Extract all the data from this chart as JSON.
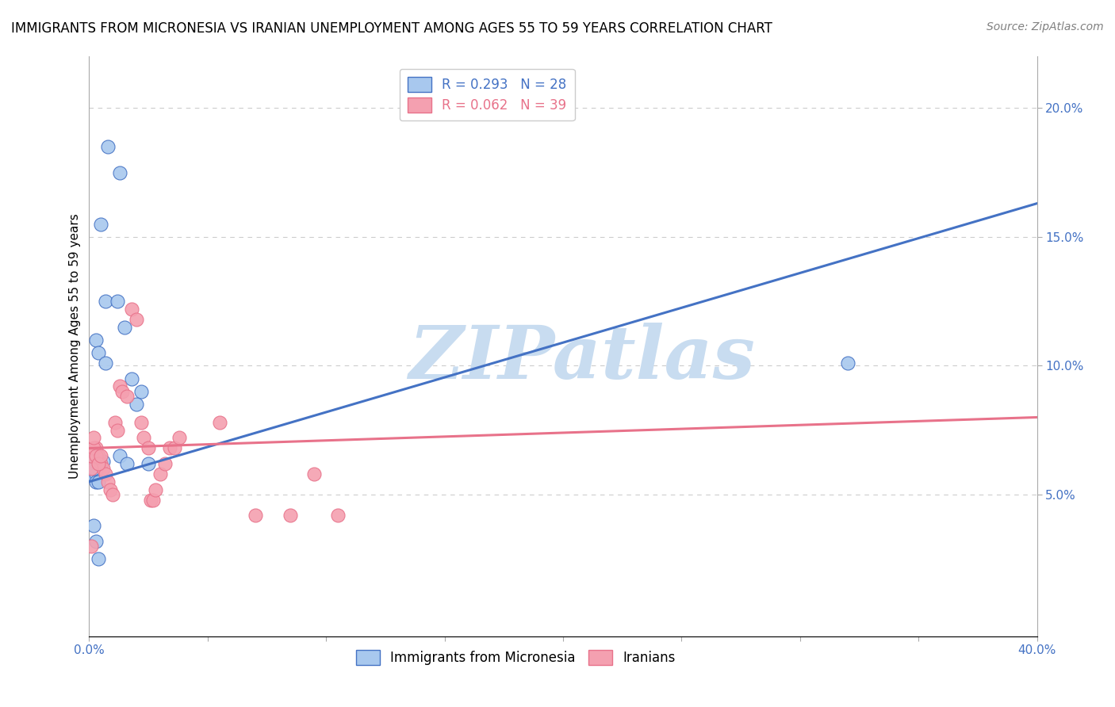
{
  "title": "IMMIGRANTS FROM MICRONESIA VS IRANIAN UNEMPLOYMENT AMONG AGES 55 TO 59 YEARS CORRELATION CHART",
  "source_text": "Source: ZipAtlas.com",
  "ylabel": "Unemployment Among Ages 55 to 59 years",
  "xlabel": "",
  "xlim": [
    0.0,
    0.4
  ],
  "ylim": [
    -0.005,
    0.22
  ],
  "xticks": [
    0.0,
    0.05,
    0.1,
    0.15,
    0.2,
    0.25,
    0.3,
    0.35,
    0.4
  ],
  "xtick_labels_show": [
    true,
    false,
    false,
    false,
    false,
    false,
    false,
    false,
    true
  ],
  "yticks": [
    0.05,
    0.1,
    0.15,
    0.2
  ],
  "blue_R": 0.293,
  "blue_N": 28,
  "pink_R": 0.062,
  "pink_N": 39,
  "blue_scatter_x": [
    0.008,
    0.013,
    0.005,
    0.007,
    0.012,
    0.015,
    0.003,
    0.004,
    0.006,
    0.002,
    0.001,
    0.002,
    0.001,
    0.003,
    0.003,
    0.004,
    0.018,
    0.022,
    0.02,
    0.025,
    0.013,
    0.016,
    0.002,
    0.007,
    0.32,
    0.002,
    0.003,
    0.004
  ],
  "blue_scatter_y": [
    0.185,
    0.175,
    0.155,
    0.125,
    0.125,
    0.115,
    0.11,
    0.105,
    0.063,
    0.063,
    0.063,
    0.063,
    0.058,
    0.058,
    0.055,
    0.055,
    0.095,
    0.09,
    0.085,
    0.062,
    0.065,
    0.062,
    0.06,
    0.101,
    0.101,
    0.038,
    0.032,
    0.025
  ],
  "pink_scatter_x": [
    0.003,
    0.004,
    0.005,
    0.006,
    0.007,
    0.008,
    0.009,
    0.01,
    0.011,
    0.012,
    0.013,
    0.014,
    0.016,
    0.018,
    0.02,
    0.022,
    0.023,
    0.025,
    0.026,
    0.027,
    0.028,
    0.03,
    0.032,
    0.034,
    0.036,
    0.038,
    0.055,
    0.07,
    0.085,
    0.095,
    0.105,
    0.001,
    0.001,
    0.001,
    0.002,
    0.002,
    0.003,
    0.004,
    0.005
  ],
  "pink_scatter_y": [
    0.068,
    0.065,
    0.062,
    0.06,
    0.058,
    0.055,
    0.052,
    0.05,
    0.078,
    0.075,
    0.092,
    0.09,
    0.088,
    0.122,
    0.118,
    0.078,
    0.072,
    0.068,
    0.048,
    0.048,
    0.052,
    0.058,
    0.062,
    0.068,
    0.068,
    0.072,
    0.078,
    0.042,
    0.042,
    0.058,
    0.042,
    0.03,
    0.06,
    0.065,
    0.068,
    0.072,
    0.065,
    0.062,
    0.065
  ],
  "blue_line_x": [
    0.0,
    0.4
  ],
  "blue_line_y_start": 0.055,
  "blue_line_y_end": 0.163,
  "pink_line_x": [
    0.0,
    0.4
  ],
  "pink_line_y_start": 0.068,
  "pink_line_y_end": 0.08,
  "blue_color": "#A8C8EE",
  "blue_line_color": "#4472C4",
  "pink_color": "#F4A0B0",
  "pink_line_color": "#E8728A",
  "grid_color": "#CCCCCC",
  "watermark_text": "ZIPatlas",
  "watermark_color": "#C8DCF0",
  "title_fontsize": 12,
  "label_fontsize": 11,
  "tick_fontsize": 11,
  "legend_fontsize": 12,
  "source_fontsize": 10,
  "background_color": "#FFFFFF"
}
